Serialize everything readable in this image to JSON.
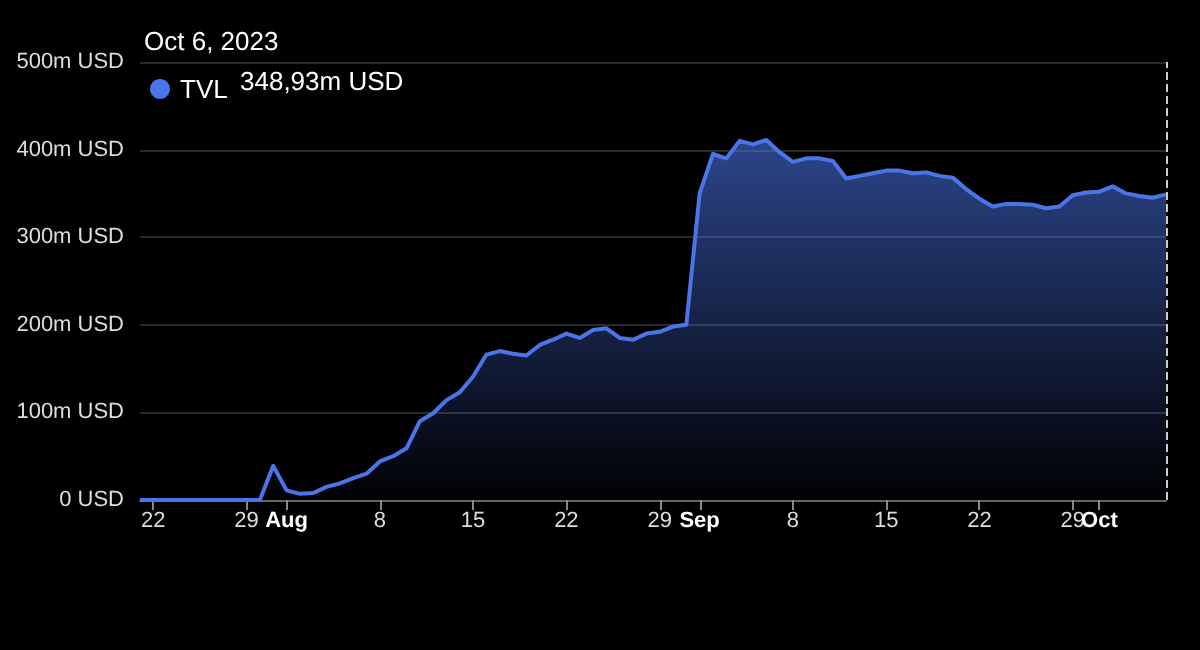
{
  "chart_data": {
    "type": "area",
    "annotations": [
      "Oct 6, 2023",
      "348,93m USD"
    ],
    "x": [
      "2023-07-21",
      "2023-07-30",
      "2023-07-31",
      "2023-08-01",
      "2023-08-02",
      "2023-08-03",
      "2023-08-04",
      "2023-08-05",
      "2023-08-06",
      "2023-08-07",
      "2023-08-08",
      "2023-08-09",
      "2023-08-10",
      "2023-08-11",
      "2023-08-12",
      "2023-08-13",
      "2023-08-14",
      "2023-08-15",
      "2023-08-16",
      "2023-08-17",
      "2023-08-18",
      "2023-08-19",
      "2023-08-20",
      "2023-08-21",
      "2023-08-22",
      "2023-08-23",
      "2023-08-24",
      "2023-08-25",
      "2023-08-26",
      "2023-08-27",
      "2023-08-28",
      "2023-08-29",
      "2023-08-30",
      "2023-08-31",
      "2023-09-01",
      "2023-09-02",
      "2023-09-03",
      "2023-09-04",
      "2023-09-05",
      "2023-09-06",
      "2023-09-07",
      "2023-09-08",
      "2023-09-09",
      "2023-09-10",
      "2023-09-11",
      "2023-09-12",
      "2023-09-13",
      "2023-09-14",
      "2023-09-15",
      "2023-09-16",
      "2023-09-17",
      "2023-09-18",
      "2023-09-19",
      "2023-09-20",
      "2023-09-21",
      "2023-09-22",
      "2023-09-23",
      "2023-09-24",
      "2023-09-25",
      "2023-09-26",
      "2023-09-27",
      "2023-09-28",
      "2023-09-29",
      "2023-09-30",
      "2023-10-01",
      "2023-10-02",
      "2023-10-03",
      "2023-10-04",
      "2023-10-05",
      "2023-10-06"
    ],
    "series": [
      {
        "name": "TVL",
        "color": "#4a74e8",
        "values": [
          0,
          0,
          39,
          11,
          7,
          8,
          15,
          19,
          25,
          30,
          44,
          50,
          59,
          90,
          99,
          114,
          123,
          141,
          166,
          170,
          167,
          165,
          177,
          183,
          190,
          185,
          194,
          196,
          185,
          183,
          190,
          192,
          198,
          200,
          350,
          395,
          390,
          410,
          406,
          411,
          397,
          386,
          390,
          390,
          387,
          367,
          370,
          373,
          376,
          376,
          373,
          374,
          370,
          368,
          355,
          344,
          335,
          338,
          338,
          337,
          333,
          335,
          348,
          351,
          352,
          358,
          350,
          347,
          345,
          348.93
        ]
      }
    ],
    "xlim": [
      "2023-07-21",
      "2023-10-06"
    ],
    "xticks": [
      {
        "value": "2023-07-22",
        "label": "22"
      },
      {
        "value": "2023-07-29",
        "label": "29"
      },
      {
        "value": "2023-08-01",
        "label": "Aug"
      },
      {
        "value": "2023-08-08",
        "label": "8"
      },
      {
        "value": "2023-08-15",
        "label": "15"
      },
      {
        "value": "2023-08-22",
        "label": "22"
      },
      {
        "value": "2023-08-29",
        "label": "29"
      },
      {
        "value": "2023-09-01",
        "label": "Sep"
      },
      {
        "value": "2023-09-08",
        "label": "8"
      },
      {
        "value": "2023-09-15",
        "label": "15"
      },
      {
        "value": "2023-09-22",
        "label": "22"
      },
      {
        "value": "2023-09-29",
        "label": "29"
      },
      {
        "value": "2023-10-01",
        "label": "Oct"
      }
    ],
    "ylim": [
      0,
      500
    ],
    "yticks": [
      {
        "value": 0,
        "label": "0 USD"
      },
      {
        "value": 100,
        "label": "100m USD"
      },
      {
        "value": 200,
        "label": "200m USD"
      },
      {
        "value": 300,
        "label": "300m USD"
      },
      {
        "value": 400,
        "label": "400m USD"
      },
      {
        "value": 500,
        "label": "500m USD"
      }
    ],
    "grid": "y",
    "legend": "top left",
    "marker": "none",
    "line_style": "solid",
    "ref_lines": [
      {
        "axis": "x",
        "value": "2023-10-06",
        "color": "#cccccc",
        "line_style": "dashed"
      }
    ]
  }
}
